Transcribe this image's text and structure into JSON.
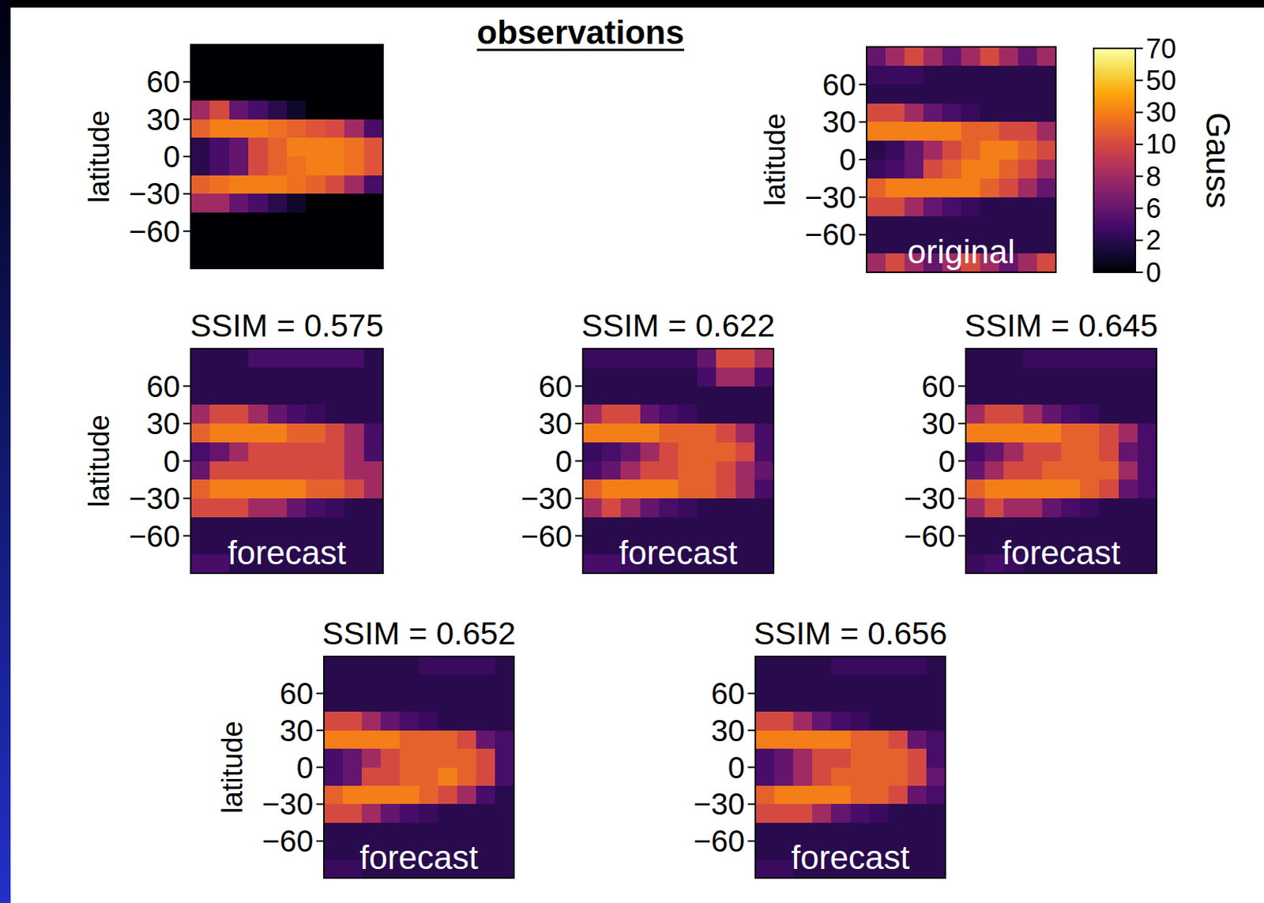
{
  "header": {
    "title": "observations"
  },
  "chart_data": [
    {
      "type": "heatmap",
      "y_label": "latitude",
      "ylim": [
        -90,
        90
      ],
      "yticks": [
        {
          "value": -60,
          "label": "−60"
        },
        {
          "value": -30,
          "label": "−30"
        },
        0,
        30,
        60
      ],
      "tick_labels": "y",
      "y_bins": [
        90,
        75,
        60,
        45,
        30,
        15,
        0,
        -15,
        -30,
        -45,
        -60,
        -75,
        -90
      ],
      "cells": [
        [
          0,
          0,
          0,
          0,
          0,
          0,
          0,
          0,
          0,
          0
        ],
        [
          0,
          0,
          0,
          0,
          0,
          0,
          0,
          0,
          0,
          0
        ],
        [
          0,
          0,
          0,
          0,
          0,
          0,
          0,
          0,
          0,
          0
        ],
        [
          8,
          10,
          6,
          4,
          2,
          1,
          0,
          0,
          0,
          0
        ],
        [
          20,
          30,
          30,
          30,
          25,
          20,
          15,
          10,
          8,
          4
        ],
        [
          2,
          4,
          6,
          10,
          20,
          30,
          30,
          30,
          25,
          15
        ],
        [
          2,
          4,
          6,
          10,
          20,
          25,
          30,
          30,
          25,
          15
        ],
        [
          20,
          25,
          30,
          30,
          30,
          25,
          20,
          10,
          8,
          4
        ],
        [
          8,
          8,
          6,
          4,
          2,
          1,
          0,
          0,
          0,
          0
        ],
        [
          0,
          0,
          0,
          0,
          0,
          0,
          0,
          0,
          0,
          0
        ],
        [
          0,
          0,
          0,
          0,
          0,
          0,
          0,
          0,
          0,
          0
        ],
        [
          0,
          0,
          0,
          0,
          0,
          0,
          0,
          0,
          0,
          0
        ]
      ]
    },
    {
      "type": "heatmap",
      "label": "original",
      "y_label": "latitude",
      "ylim": [
        -90,
        90
      ],
      "yticks": [
        {
          "value": -60,
          "label": "−60"
        },
        {
          "value": -30,
          "label": "−30"
        },
        0,
        30,
        60
      ],
      "tick_labels": "y",
      "y_bins": [
        90,
        75,
        60,
        45,
        30,
        15,
        0,
        -15,
        -30,
        -45,
        -60,
        -75,
        -90
      ],
      "colorbar": {
        "label": "Gauss",
        "range": [
          0,
          70
        ],
        "ticks": [
          0,
          2,
          6,
          8,
          10,
          30,
          50,
          70
        ]
      },
      "cells": [
        [
          6,
          8,
          10,
          8,
          6,
          8,
          10,
          8,
          6,
          8
        ],
        [
          3,
          3,
          3,
          2,
          2,
          2,
          2,
          2,
          2,
          2
        ],
        [
          2,
          2,
          2,
          2,
          2,
          2,
          2,
          2,
          2,
          2
        ],
        [
          10,
          10,
          8,
          6,
          4,
          3,
          2,
          2,
          2,
          2
        ],
        [
          30,
          30,
          30,
          30,
          30,
          20,
          20,
          10,
          10,
          8
        ],
        [
          2,
          3,
          6,
          8,
          10,
          20,
          30,
          30,
          20,
          10
        ],
        [
          3,
          4,
          6,
          10,
          20,
          30,
          30,
          20,
          10,
          8
        ],
        [
          20,
          30,
          30,
          30,
          30,
          30,
          20,
          10,
          8,
          6
        ],
        [
          10,
          10,
          8,
          6,
          4,
          3,
          2,
          2,
          2,
          2
        ],
        [
          2,
          2,
          2,
          2,
          2,
          2,
          2,
          2,
          2,
          2
        ],
        [
          2,
          2,
          2,
          2,
          2,
          2,
          2,
          2,
          2,
          2
        ],
        [
          8,
          10,
          8,
          6,
          8,
          10,
          8,
          6,
          8,
          10
        ]
      ]
    },
    {
      "type": "heatmap",
      "title": "SSIM = 0.575",
      "label": "forecast",
      "y_label": "latitude",
      "ylim": [
        -90,
        90
      ],
      "yticks": [
        {
          "value": -60,
          "label": "−60"
        },
        {
          "value": -30,
          "label": "−30"
        },
        0,
        30,
        60
      ],
      "tick_labels": "y",
      "y_bins": [
        90,
        75,
        60,
        45,
        30,
        15,
        0,
        -15,
        -30,
        -45,
        -60,
        -75,
        -90
      ],
      "cells": [
        [
          2,
          2,
          2,
          4,
          4,
          4,
          4,
          4,
          4,
          2
        ],
        [
          2,
          2,
          2,
          2,
          2,
          2,
          2,
          2,
          2,
          2
        ],
        [
          2,
          2,
          2,
          2,
          2,
          2,
          2,
          2,
          2,
          2
        ],
        [
          8,
          10,
          10,
          8,
          6,
          4,
          3,
          2,
          2,
          2
        ],
        [
          20,
          30,
          30,
          30,
          30,
          20,
          20,
          10,
          8,
          4
        ],
        [
          4,
          6,
          8,
          10,
          10,
          10,
          10,
          10,
          8,
          4
        ],
        [
          6,
          10,
          10,
          10,
          10,
          10,
          10,
          10,
          8,
          8
        ],
        [
          20,
          30,
          30,
          30,
          30,
          30,
          20,
          20,
          10,
          8
        ],
        [
          10,
          10,
          10,
          8,
          8,
          6,
          4,
          3,
          2,
          2
        ],
        [
          2,
          2,
          2,
          2,
          2,
          2,
          2,
          2,
          2,
          2
        ],
        [
          2,
          2,
          2,
          2,
          2,
          2,
          2,
          2,
          2,
          2
        ],
        [
          4,
          4,
          2,
          2,
          2,
          2,
          2,
          2,
          2,
          2
        ]
      ]
    },
    {
      "type": "heatmap",
      "title": "SSIM = 0.622",
      "label": "forecast",
      "ylim": [
        -90,
        90
      ],
      "yticks": [
        {
          "value": -60,
          "label": "−60"
        },
        {
          "value": -30,
          "label": "−30"
        },
        0,
        30,
        60
      ],
      "tick_labels": "y",
      "y_bins": [
        90,
        75,
        60,
        45,
        30,
        15,
        0,
        -15,
        -30,
        -45,
        -60,
        -75,
        -90
      ],
      "cells": [
        [
          3,
          3,
          3,
          3,
          3,
          3,
          6,
          10,
          10,
          8
        ],
        [
          2,
          2,
          2,
          2,
          2,
          2,
          4,
          8,
          8,
          4
        ],
        [
          2,
          2,
          2,
          2,
          2,
          2,
          2,
          2,
          2,
          2
        ],
        [
          8,
          10,
          10,
          6,
          4,
          3,
          2,
          2,
          2,
          2
        ],
        [
          30,
          30,
          30,
          30,
          20,
          20,
          20,
          10,
          8,
          4
        ],
        [
          3,
          4,
          6,
          8,
          10,
          20,
          20,
          20,
          10,
          4
        ],
        [
          4,
          6,
          8,
          10,
          10,
          20,
          20,
          10,
          8,
          6
        ],
        [
          20,
          30,
          30,
          30,
          30,
          20,
          20,
          10,
          8,
          4
        ],
        [
          8,
          10,
          8,
          6,
          4,
          3,
          2,
          2,
          2,
          2
        ],
        [
          2,
          2,
          2,
          2,
          2,
          2,
          2,
          2,
          2,
          2
        ],
        [
          2,
          2,
          2,
          2,
          2,
          2,
          2,
          2,
          2,
          2
        ],
        [
          4,
          4,
          3,
          2,
          2,
          2,
          2,
          2,
          2,
          2
        ]
      ]
    },
    {
      "type": "heatmap",
      "title": "SSIM = 0.645",
      "label": "forecast",
      "ylim": [
        -90,
        90
      ],
      "yticks": [
        {
          "value": -60,
          "label": "−60"
        },
        {
          "value": -30,
          "label": "−30"
        },
        0,
        30,
        60
      ],
      "tick_labels": "y",
      "y_bins": [
        90,
        75,
        60,
        45,
        30,
        15,
        0,
        -15,
        -30,
        -45,
        -60,
        -75,
        -90
      ],
      "cells": [
        [
          2,
          2,
          2,
          3,
          3,
          3,
          3,
          3,
          3,
          3
        ],
        [
          2,
          2,
          2,
          2,
          2,
          2,
          2,
          2,
          2,
          2
        ],
        [
          2,
          2,
          2,
          2,
          2,
          2,
          2,
          2,
          2,
          2
        ],
        [
          8,
          10,
          10,
          8,
          6,
          4,
          3,
          2,
          2,
          2
        ],
        [
          30,
          30,
          30,
          30,
          30,
          20,
          20,
          10,
          8,
          4
        ],
        [
          4,
          6,
          8,
          10,
          10,
          20,
          20,
          10,
          6,
          4
        ],
        [
          6,
          8,
          10,
          10,
          20,
          20,
          20,
          20,
          8,
          4
        ],
        [
          20,
          30,
          30,
          30,
          30,
          30,
          20,
          10,
          6,
          4
        ],
        [
          8,
          10,
          8,
          8,
          6,
          4,
          3,
          2,
          2,
          2
        ],
        [
          2,
          2,
          2,
          2,
          2,
          2,
          2,
          2,
          2,
          2
        ],
        [
          2,
          2,
          2,
          2,
          2,
          2,
          2,
          2,
          2,
          2
        ],
        [
          3,
          4,
          3,
          2,
          2,
          2,
          2,
          2,
          2,
          2
        ]
      ]
    },
    {
      "type": "heatmap",
      "title": "SSIM = 0.652",
      "label": "forecast",
      "y_label": "latitude",
      "ylim": [
        -90,
        90
      ],
      "yticks": [
        {
          "value": -60,
          "label": "−60"
        },
        {
          "value": -30,
          "label": "−30"
        },
        0,
        30,
        60
      ],
      "tick_labels": "y",
      "y_bins": [
        90,
        75,
        60,
        45,
        30,
        15,
        0,
        -15,
        -30,
        -45,
        -60,
        -75,
        -90
      ],
      "cells": [
        [
          2,
          2,
          2,
          2,
          2,
          3,
          3,
          3,
          3,
          2
        ],
        [
          2,
          2,
          2,
          2,
          2,
          2,
          2,
          2,
          2,
          2
        ],
        [
          2,
          2,
          2,
          2,
          2,
          2,
          2,
          2,
          2,
          2
        ],
        [
          10,
          10,
          8,
          6,
          4,
          3,
          2,
          2,
          2,
          2
        ],
        [
          30,
          30,
          30,
          30,
          20,
          20,
          20,
          10,
          6,
          4
        ],
        [
          4,
          6,
          8,
          10,
          20,
          20,
          20,
          20,
          10,
          4
        ],
        [
          4,
          6,
          10,
          10,
          20,
          20,
          30,
          20,
          10,
          4
        ],
        [
          20,
          30,
          30,
          30,
          30,
          20,
          10,
          8,
          4,
          2
        ],
        [
          10,
          10,
          8,
          6,
          4,
          3,
          2,
          2,
          2,
          2
        ],
        [
          2,
          2,
          2,
          2,
          2,
          2,
          2,
          2,
          2,
          2
        ],
        [
          2,
          2,
          2,
          2,
          2,
          2,
          2,
          2,
          2,
          2
        ],
        [
          3,
          3,
          2,
          2,
          2,
          2,
          2,
          2,
          2,
          2
        ]
      ]
    },
    {
      "type": "heatmap",
      "title": "SSIM = 0.656",
      "label": "forecast",
      "ylim": [
        -90,
        90
      ],
      "yticks": [
        {
          "value": -60,
          "label": "−60"
        },
        {
          "value": -30,
          "label": "−30"
        },
        0,
        30,
        60
      ],
      "tick_labels": "y",
      "y_bins": [
        90,
        75,
        60,
        45,
        30,
        15,
        0,
        -15,
        -30,
        -45,
        -60,
        -75,
        -90
      ],
      "cells": [
        [
          2,
          2,
          2,
          2,
          3,
          3,
          3,
          3,
          3,
          2
        ],
        [
          2,
          2,
          2,
          2,
          2,
          2,
          2,
          2,
          2,
          2
        ],
        [
          2,
          2,
          2,
          2,
          2,
          2,
          2,
          2,
          2,
          2
        ],
        [
          10,
          10,
          8,
          6,
          4,
          3,
          2,
          2,
          2,
          2
        ],
        [
          30,
          30,
          30,
          30,
          30,
          20,
          20,
          10,
          6,
          4
        ],
        [
          4,
          6,
          8,
          10,
          10,
          20,
          20,
          20,
          10,
          4
        ],
        [
          4,
          6,
          8,
          10,
          20,
          20,
          20,
          20,
          10,
          6
        ],
        [
          20,
          30,
          30,
          30,
          30,
          20,
          20,
          10,
          6,
          4
        ],
        [
          10,
          10,
          10,
          8,
          6,
          4,
          3,
          2,
          2,
          2
        ],
        [
          2,
          2,
          2,
          2,
          2,
          2,
          2,
          2,
          2,
          2
        ],
        [
          2,
          2,
          2,
          2,
          2,
          2,
          2,
          2,
          2,
          2
        ],
        [
          3,
          3,
          2,
          2,
          2,
          2,
          2,
          2,
          2,
          2
        ]
      ]
    }
  ]
}
